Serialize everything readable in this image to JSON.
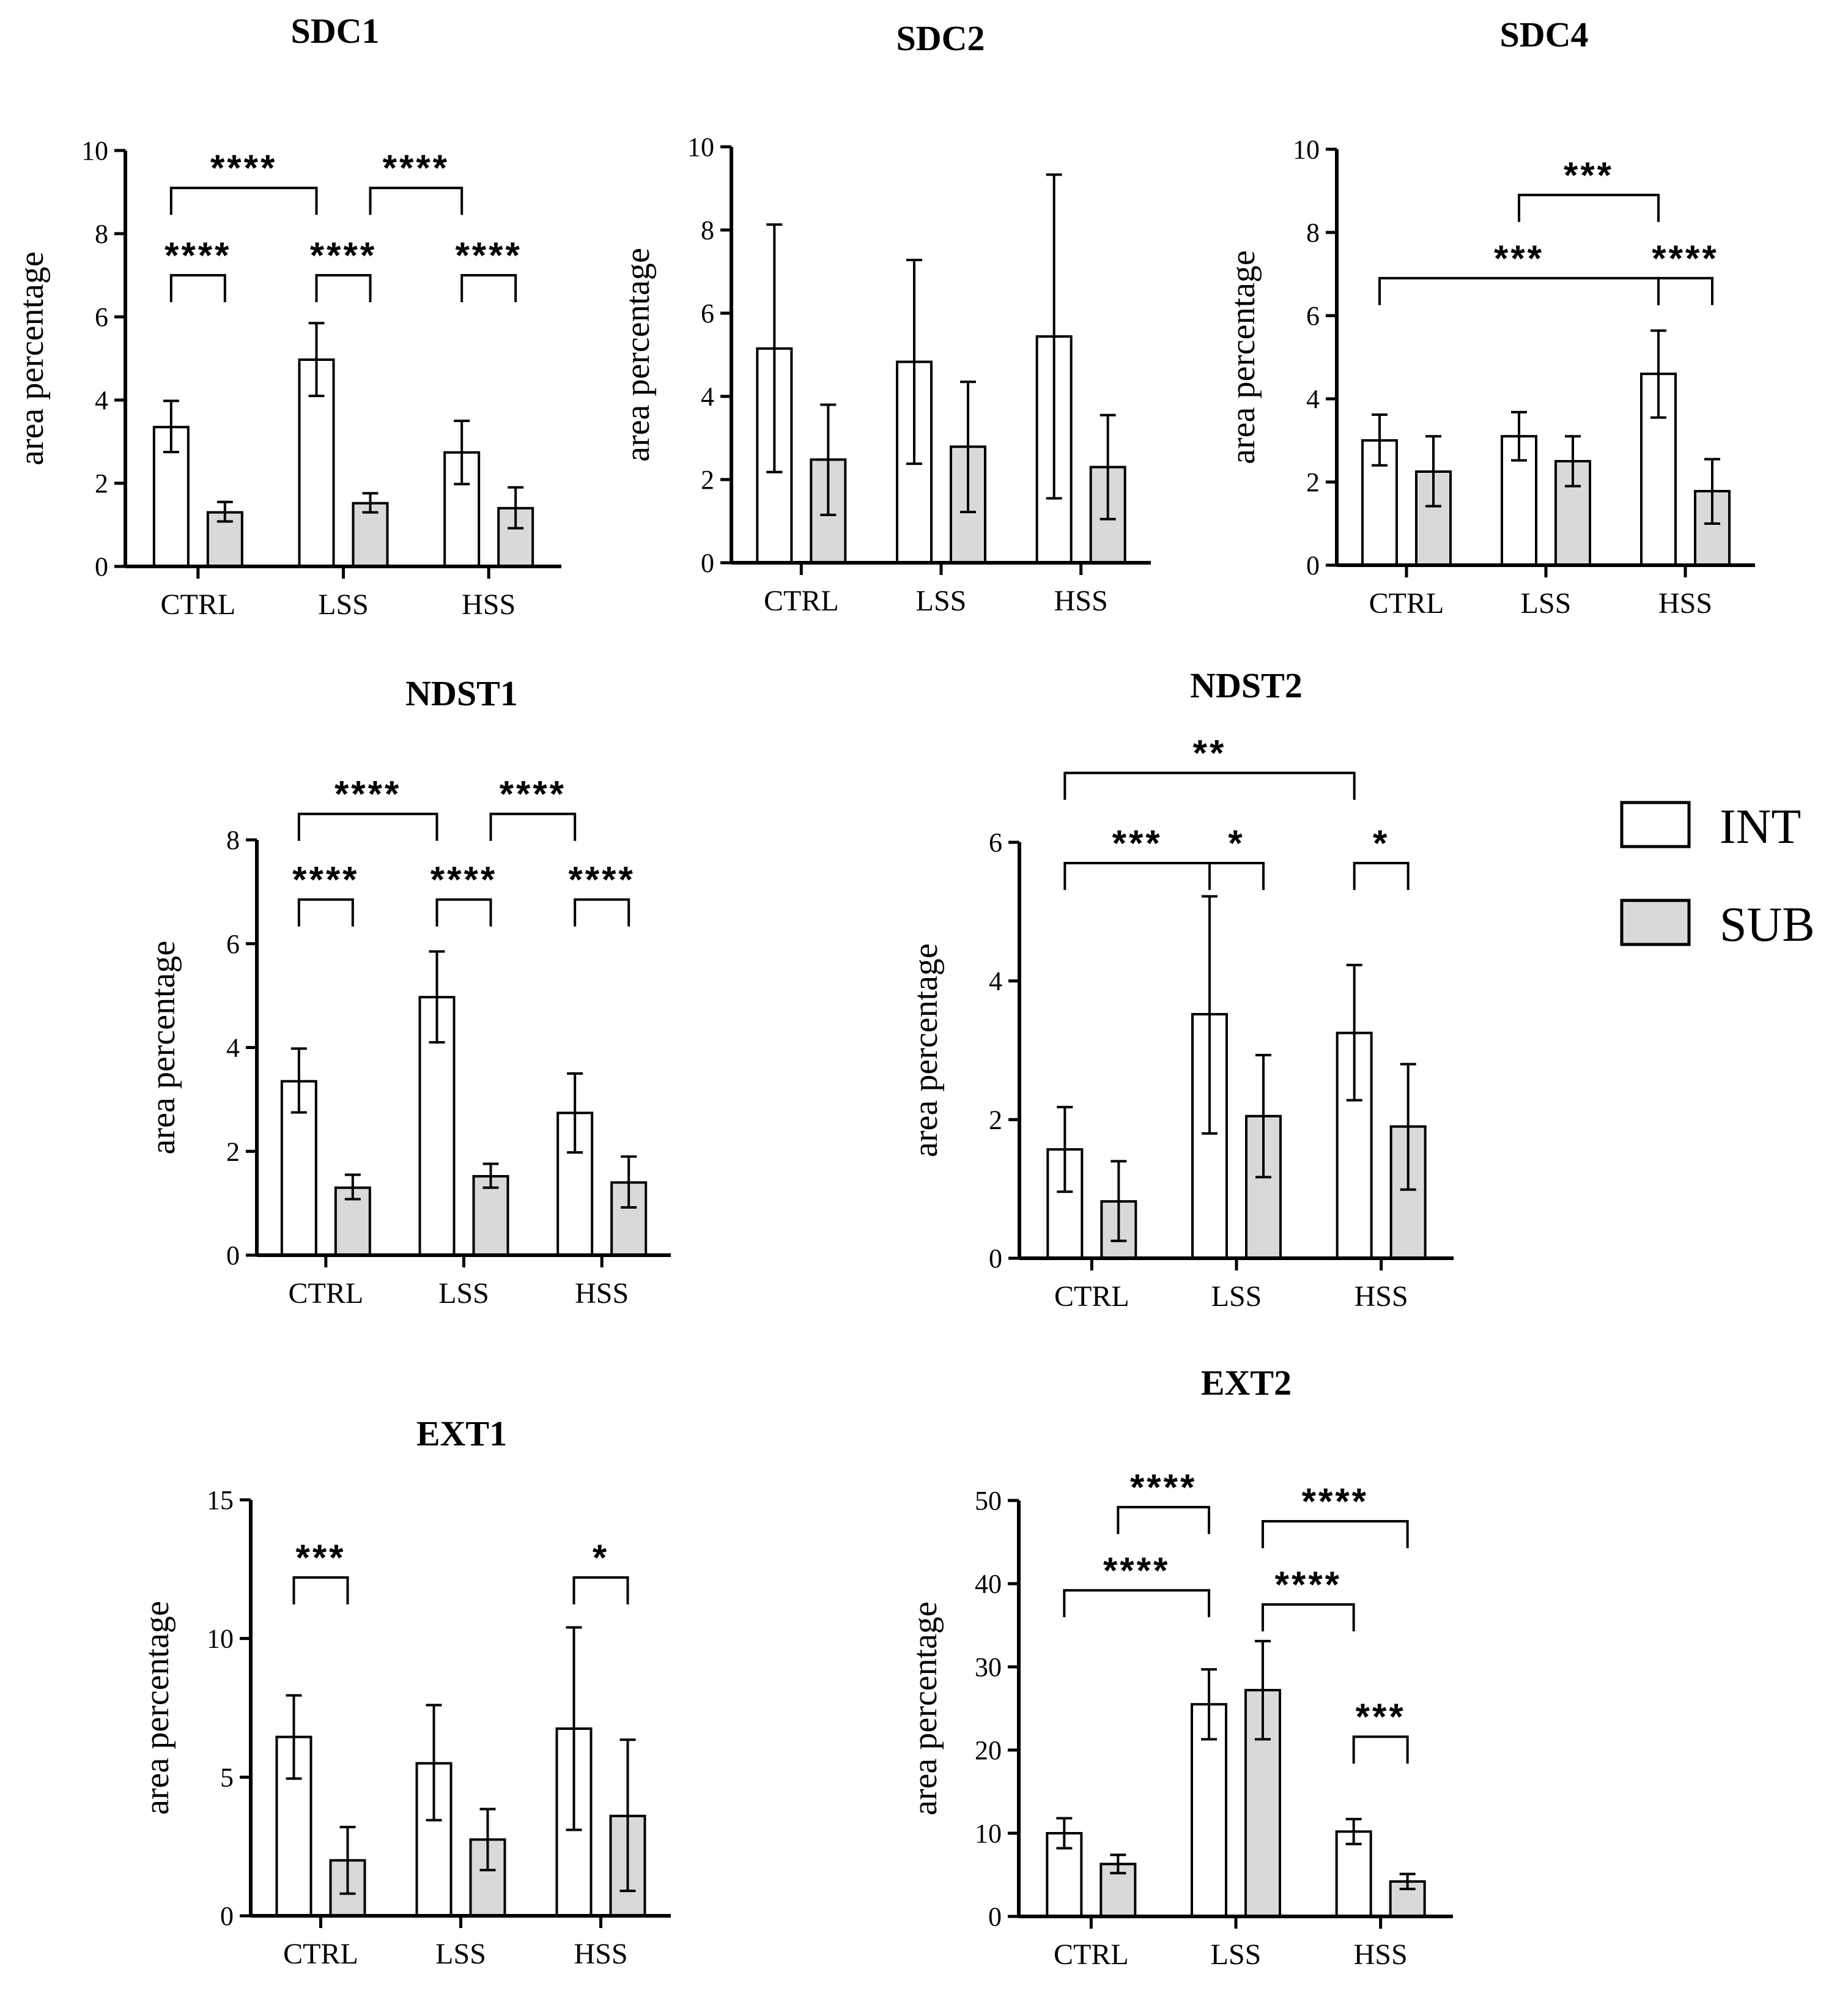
{
  "colors": {
    "int_fill": "#ffffff",
    "sub_fill": "#d9d9d9",
    "stroke": "#000000"
  },
  "legend": {
    "int_label": "INT",
    "sub_label": "SUB"
  },
  "chart_data": [
    {
      "id": "sdc1",
      "type": "bar",
      "title": "SDC1",
      "ylabel": "area percentage",
      "ylim": [
        0,
        10
      ],
      "yticks": [
        "0",
        "2",
        "4",
        "6",
        "8",
        "10"
      ],
      "categories": [
        "CTRL",
        "LSS",
        "HSS"
      ],
      "series": [
        {
          "name": "INT",
          "values": [
            3.35,
            4.97,
            2.74
          ],
          "err_low": [
            2.75,
            4.1,
            1.98
          ],
          "err_high": [
            3.98,
            5.85,
            3.5
          ]
        },
        {
          "name": "SUB",
          "values": [
            1.3,
            1.52,
            1.4
          ],
          "err_low": [
            1.08,
            1.3,
            0.92
          ],
          "err_high": [
            1.55,
            1.76,
            1.9
          ]
        }
      ],
      "annotations": [
        {
          "label": "****",
          "from": "CTRL.INT",
          "to": "LSS.INT",
          "level": 9.1
        },
        {
          "label": "****",
          "from": "LSS.SUB",
          "to": "HSS.INT",
          "level": 9.1
        },
        {
          "label": "****",
          "from": "CTRL.INT",
          "to": "CTRL.SUB",
          "level": 7.0
        },
        {
          "label": "****",
          "from": "LSS.INT",
          "to": "LSS.SUB",
          "level": 7.0
        },
        {
          "label": "****",
          "from": "HSS.INT",
          "to": "HSS.SUB",
          "level": 7.0
        }
      ]
    },
    {
      "id": "sdc2",
      "type": "bar",
      "title": "SDC2",
      "ylabel": "area percentage",
      "ylim": [
        0,
        10
      ],
      "yticks": [
        "0",
        "2",
        "4",
        "6",
        "8",
        "10"
      ],
      "categories": [
        "CTRL",
        "LSS",
        "HSS"
      ],
      "series": [
        {
          "name": "INT",
          "values": [
            5.15,
            4.83,
            5.44
          ],
          "err_low": [
            2.18,
            2.38,
            1.55
          ],
          "err_high": [
            8.13,
            7.28,
            9.33
          ]
        },
        {
          "name": "SUB",
          "values": [
            2.48,
            2.79,
            2.3
          ],
          "err_low": [
            1.15,
            1.22,
            1.05
          ],
          "err_high": [
            3.8,
            4.35,
            3.55
          ]
        }
      ],
      "annotations": []
    },
    {
      "id": "sdc4",
      "type": "bar",
      "title": "SDC4",
      "ylabel": "area percentage",
      "ylim": [
        0,
        10
      ],
      "yticks": [
        "0",
        "2",
        "4",
        "6",
        "8",
        "10"
      ],
      "categories": [
        "CTRL",
        "LSS",
        "HSS"
      ],
      "series": [
        {
          "name": "INT",
          "values": [
            3.0,
            3.1,
            4.6
          ],
          "err_low": [
            2.4,
            2.52,
            3.55
          ],
          "err_high": [
            3.62,
            3.68,
            5.64
          ]
        },
        {
          "name": "SUB",
          "values": [
            2.25,
            2.5,
            1.78
          ],
          "err_low": [
            1.42,
            1.9,
            1.0
          ],
          "err_high": [
            3.1,
            3.1,
            2.55
          ]
        }
      ],
      "annotations": [
        {
          "label": "***",
          "from": "LSS.INT",
          "to": "HSS.INT",
          "level": 8.9
        },
        {
          "label": "***",
          "from": "CTRL.INT",
          "to": "HSS.INT",
          "level": 6.9
        },
        {
          "label": "****",
          "from": "HSS.INT",
          "to": "HSS.SUB",
          "level": 6.9
        }
      ]
    },
    {
      "id": "ndst1",
      "type": "bar",
      "title": "NDST1",
      "ylabel": "area percentage",
      "ylim": [
        0,
        8
      ],
      "yticks": [
        "0",
        "2",
        "4",
        "6",
        "8"
      ],
      "categories": [
        "CTRL",
        "LSS",
        "HSS"
      ],
      "series": [
        {
          "name": "INT",
          "values": [
            3.35,
            4.97,
            2.74
          ],
          "err_low": [
            2.75,
            4.1,
            1.98
          ],
          "err_high": [
            3.98,
            5.85,
            3.5
          ]
        },
        {
          "name": "SUB",
          "values": [
            1.3,
            1.52,
            1.4
          ],
          "err_low": [
            1.08,
            1.3,
            0.92
          ],
          "err_high": [
            1.55,
            1.76,
            1.9
          ]
        }
      ],
      "annotations": [
        {
          "label": "****",
          "from": "CTRL.INT",
          "to": "LSS.INT",
          "level": 8.5
        },
        {
          "label": "****",
          "from": "LSS.SUB",
          "to": "HSS.INT",
          "level": 8.5
        },
        {
          "label": "****",
          "from": "CTRL.INT",
          "to": "CTRL.SUB",
          "level": 6.85
        },
        {
          "label": "****",
          "from": "LSS.INT",
          "to": "LSS.SUB",
          "level": 6.85
        },
        {
          "label": "****",
          "from": "HSS.INT",
          "to": "HSS.SUB",
          "level": 6.85
        }
      ]
    },
    {
      "id": "ndst2",
      "type": "bar",
      "title": "NDST2",
      "ylabel": "area percentage",
      "ylim": [
        0,
        6
      ],
      "yticks": [
        "0",
        "2",
        "4",
        "6"
      ],
      "categories": [
        "CTRL",
        "LSS",
        "HSS"
      ],
      "series": [
        {
          "name": "INT",
          "values": [
            1.57,
            3.52,
            3.25
          ],
          "err_low": [
            0.96,
            1.8,
            2.28
          ],
          "err_high": [
            2.18,
            5.22,
            4.23
          ]
        },
        {
          "name": "SUB",
          "values": [
            0.82,
            2.05,
            1.9
          ],
          "err_low": [
            0.25,
            1.17,
            0.99
          ],
          "err_high": [
            1.4,
            2.93,
            2.8
          ]
        }
      ],
      "annotations": [
        {
          "label": "**",
          "from": "CTRL.INT",
          "to": "HSS.INT",
          "level": 7.0
        },
        {
          "label": "***",
          "from": "CTRL.INT",
          "to": "LSS.INT",
          "level": 5.7
        },
        {
          "label": "*",
          "from": "LSS.INT",
          "to": "LSS.SUB",
          "level": 5.7
        },
        {
          "label": "*",
          "from": "HSS.INT",
          "to": "HSS.SUB",
          "level": 5.7
        }
      ]
    },
    {
      "id": "ext1",
      "type": "bar",
      "title": "EXT1",
      "ylabel": "area percentage",
      "ylim": [
        0,
        15
      ],
      "yticks": [
        "0",
        "5",
        "10",
        "15"
      ],
      "categories": [
        "CTRL",
        "LSS",
        "HSS"
      ],
      "series": [
        {
          "name": "INT",
          "values": [
            6.45,
            5.5,
            6.75
          ],
          "err_low": [
            4.95,
            3.45,
            3.1
          ],
          "err_high": [
            7.95,
            7.6,
            10.4
          ]
        },
        {
          "name": "SUB",
          "values": [
            2.0,
            2.75,
            3.6
          ],
          "err_low": [
            0.8,
            1.65,
            0.9
          ],
          "err_high": [
            3.2,
            3.85,
            6.35
          ]
        }
      ],
      "annotations": [
        {
          "label": "***",
          "from": "CTRL.INT",
          "to": "CTRL.SUB",
          "level": 12.2
        },
        {
          "label": "*",
          "from": "HSS.INT",
          "to": "HSS.SUB",
          "level": 12.2
        }
      ]
    },
    {
      "id": "ext2",
      "type": "bar",
      "title": "EXT2",
      "ylabel": "area percentage",
      "ylim": [
        0,
        50
      ],
      "yticks": [
        "0",
        "10",
        "20",
        "30",
        "40",
        "50"
      ],
      "categories": [
        "CTRL",
        "LSS",
        "HSS"
      ],
      "series": [
        {
          "name": "INT",
          "values": [
            10.0,
            25.5,
            10.2
          ],
          "err_low": [
            8.2,
            21.3,
            8.7
          ],
          "err_high": [
            11.8,
            29.7,
            11.7
          ]
        },
        {
          "name": "SUB",
          "values": [
            6.3,
            27.2,
            4.2
          ],
          "err_low": [
            5.2,
            21.3,
            3.3
          ],
          "err_high": [
            7.4,
            33.1,
            5.1
          ]
        }
      ],
      "annotations": [
        {
          "label": "****",
          "from": "CTRL.SUB",
          "to": "LSS.INT",
          "level": 49.2
        },
        {
          "label": "****",
          "from": "LSS.SUB",
          "to": "HSS.SUB",
          "level": 47.5
        },
        {
          "label": "****",
          "from": "CTRL.INT",
          "to": "LSS.INT",
          "level": 39.2
        },
        {
          "label": "****",
          "from": "LSS.SUB",
          "to": "HSS.INT",
          "level": 37.5
        },
        {
          "label": "***",
          "from": "HSS.INT",
          "to": "HSS.SUB",
          "level": 21.6
        }
      ]
    }
  ]
}
